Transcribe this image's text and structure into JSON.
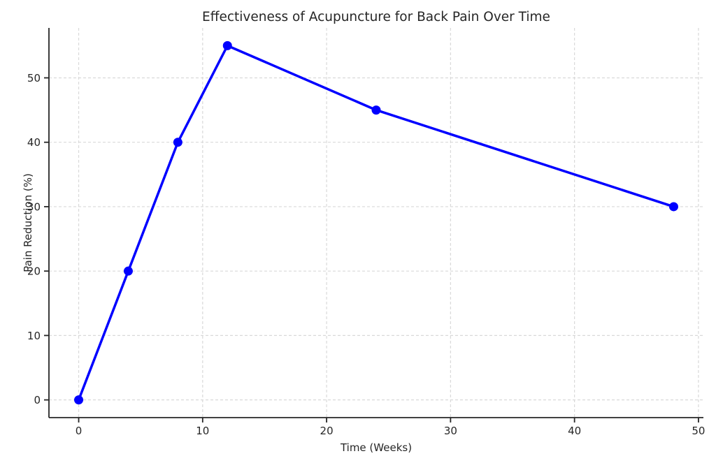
{
  "chart_data": {
    "type": "line",
    "title": "Effectiveness of Acupuncture for Back Pain Over Time",
    "xlabel": "Time (Weeks)",
    "ylabel": "Pain Reduction (%)",
    "series": [
      {
        "name": "Pain Reduction",
        "x": [
          0,
          4,
          8,
          12,
          24,
          48
        ],
        "y": [
          0,
          20,
          40,
          55,
          45,
          30
        ]
      }
    ],
    "x_ticks": [
      0,
      10,
      20,
      30,
      40,
      50
    ],
    "y_ticks": [
      0,
      10,
      20,
      30,
      40,
      50
    ],
    "xlim": [
      -2.4,
      50.4
    ],
    "ylim": [
      -2.75,
      57.75
    ],
    "grid": true,
    "grid_style": "dashed",
    "legend": "none",
    "colors": {
      "line": "#0000ff",
      "marker": "#0000ff",
      "grid": "#d9d9d9",
      "spine": "#262626",
      "text": "#262626",
      "background": "#ffffff"
    }
  }
}
